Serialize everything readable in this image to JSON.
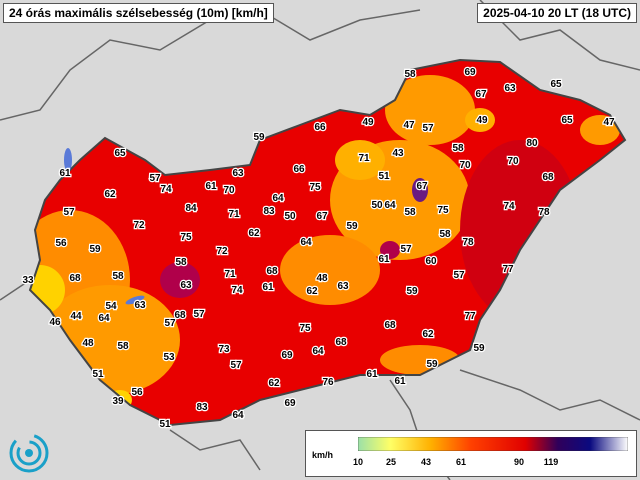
{
  "header": {
    "title": "24 órás maximális szélsebesség (10m) [km/h]",
    "timestamp": "2025-04-10 20 LT (18 UTC)"
  },
  "legend": {
    "unit": "km/h",
    "ticks": [
      "10",
      "25",
      "43",
      "61",
      "90",
      "119"
    ],
    "colors": [
      "#9be0a8",
      "#ffff66",
      "#ffb000",
      "#ff6000",
      "#e00000",
      "#b0004a",
      "#30005a",
      "#0a0a80",
      "#6060d0",
      "#ffffff"
    ]
  },
  "colors": {
    "background_land": "#d9d9d9",
    "low_wind": "#ffd200",
    "mid_wind": "#ff8c00",
    "high_wind": "#e80000",
    "very_high_wind": "#c00030"
  },
  "stations": [
    "61",
    "65",
    "57",
    "74",
    "61",
    "70",
    "59",
    "66",
    "58",
    "69",
    "67",
    "63",
    "65",
    "49",
    "47",
    "57",
    "49",
    "80",
    "65",
    "47",
    "70",
    "62",
    "84",
    "63",
    "66",
    "71",
    "43",
    "58",
    "70",
    "68",
    "75",
    "67",
    "57",
    "72",
    "75",
    "71",
    "64",
    "67",
    "51",
    "64",
    "50",
    "58",
    "75",
    "74",
    "78",
    "56",
    "59",
    "72",
    "62",
    "83",
    "50",
    "64",
    "59",
    "57",
    "58",
    "78",
    "33",
    "68",
    "58",
    "58",
    "71",
    "68",
    "61",
    "48",
    "61",
    "57",
    "60",
    "77",
    "62",
    "63",
    "59",
    "57",
    "54",
    "63",
    "57",
    "74",
    "63",
    "75",
    "68",
    "46",
    "44",
    "64",
    "48",
    "58",
    "53",
    "73",
    "69",
    "64",
    "68",
    "62",
    "77",
    "51",
    "57",
    "59",
    "62",
    "76",
    "61",
    "61",
    "59",
    "68",
    "39",
    "56",
    "83",
    "64",
    "69",
    "51"
  ]
}
